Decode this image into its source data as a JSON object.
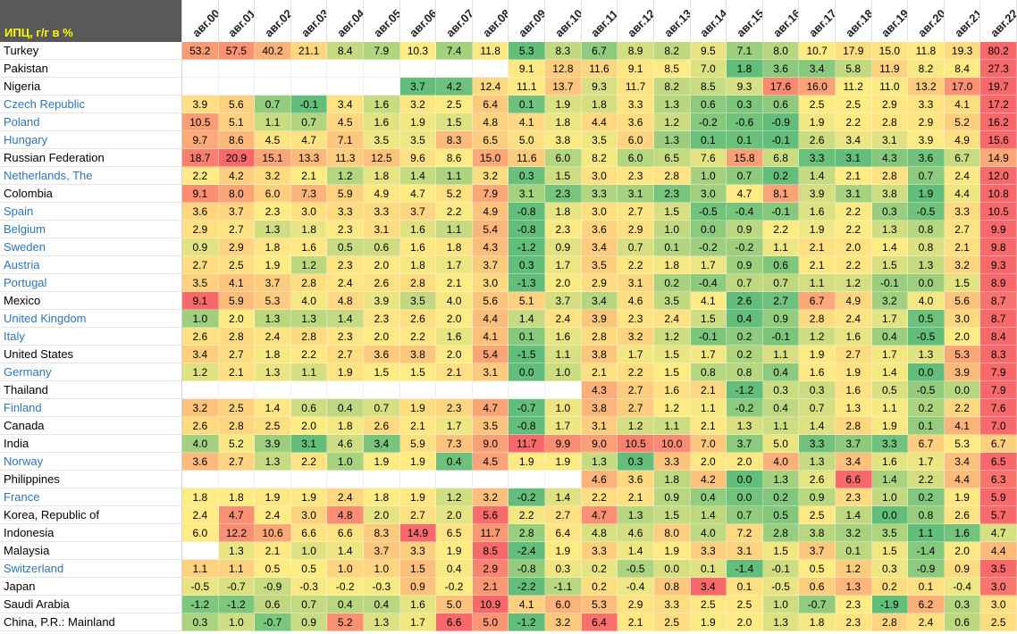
{
  "chart_data": {
    "type": "heatmap",
    "corner_label": "ИПЦ, г/г в %",
    "columns": [
      "авг.00",
      "авг.01",
      "авг.02",
      "авг.03",
      "авг.04",
      "авг.05",
      "авг.06",
      "авг.07",
      "авг.08",
      "авг.09",
      "авг.10",
      "авг.11",
      "авг.12",
      "авг.13",
      "авг.14",
      "авг.15",
      "авг.16",
      "авг.17",
      "авг.18",
      "авг.19",
      "авг.20",
      "авг.21",
      "авг.22"
    ],
    "colors": {
      "low": "#63be7b",
      "mid": "#ffeb84",
      "high": "#f8696b",
      "link": "#2f75b5",
      "header_bg": "#595959",
      "header_text": "#ffff00"
    },
    "rows": [
      {
        "label": "Turkey",
        "link": false,
        "values": [
          "53.2",
          "57.5",
          "40.2",
          "21.1",
          "8.4",
          "7.9",
          "10.3",
          "7.4",
          "11.8",
          "5.3",
          "8.3",
          "6.7",
          "8.9",
          "8.2",
          "9.5",
          "7.1",
          "8.0",
          "10.7",
          "17.9",
          "15.0",
          "11.8",
          "19.3",
          "80.2"
        ]
      },
      {
        "label": "Pakistan",
        "link": false,
        "values": [
          "",
          "",
          "",
          "",
          "",
          "",
          "",
          "",
          "",
          "9.1",
          "12.8",
          "11.6",
          "9.1",
          "8.5",
          "7.0",
          "1.8",
          "3.6",
          "3.4",
          "5.8",
          "11.9",
          "8.2",
          "8.4",
          "27.3"
        ]
      },
      {
        "label": "Nigeria",
        "link": false,
        "values": [
          "",
          "",
          "",
          "",
          "",
          "",
          "3.7",
          "4.2",
          "12.4",
          "11.1",
          "13.7",
          "9.3",
          "11.7",
          "8.2",
          "8.5",
          "9.3",
          "17.6",
          "16.0",
          "11.2",
          "11.0",
          "13.2",
          "17.0",
          "19.7"
        ]
      },
      {
        "label": "Czech Republic",
        "link": true,
        "values": [
          "3.9",
          "5.6",
          "0.7",
          "-0.1",
          "3.4",
          "1.6",
          "3.2",
          "2.5",
          "6.4",
          "0.1",
          "1.9",
          "1.8",
          "3.3",
          "1.3",
          "0.6",
          "0.3",
          "0.6",
          "2.5",
          "2.5",
          "2.9",
          "3.3",
          "4.1",
          "17.2"
        ]
      },
      {
        "label": "Poland",
        "link": true,
        "values": [
          "10.5",
          "5.1",
          "1.1",
          "0.7",
          "4.5",
          "1.6",
          "1.9",
          "1.5",
          "4.8",
          "4.1",
          "1.8",
          "4.4",
          "3.6",
          "1.2",
          "-0.2",
          "-0.6",
          "-0.9",
          "1.9",
          "2.2",
          "2.8",
          "2.9",
          "5.2",
          "16.2"
        ]
      },
      {
        "label": "Hungary",
        "link": true,
        "values": [
          "9.7",
          "8.6",
          "4.5",
          "4.7",
          "7.1",
          "3.5",
          "3.5",
          "8.3",
          "6.5",
          "5.0",
          "3.8",
          "3.5",
          "6.0",
          "1.3",
          "0.1",
          "0.1",
          "-0.1",
          "2.6",
          "3.4",
          "3.1",
          "3.9",
          "4.9",
          "15.6"
        ]
      },
      {
        "label": "Russian Federation",
        "link": false,
        "values": [
          "18.7",
          "20.9",
          "15.1",
          "13.3",
          "11.3",
          "12.5",
          "9.6",
          "8.6",
          "15.0",
          "11.6",
          "6.0",
          "8.2",
          "6.0",
          "6.5",
          "7.6",
          "15.8",
          "6.8",
          "3.3",
          "3.1",
          "4.3",
          "3.6",
          "6.7",
          "14.9"
        ]
      },
      {
        "label": "Netherlands, The",
        "link": true,
        "values": [
          "2.2",
          "4.2",
          "3.2",
          "2.1",
          "1.2",
          "1.8",
          "1.4",
          "1.1",
          "3.2",
          "0.3",
          "1.5",
          "3.0",
          "2.3",
          "2.8",
          "1.0",
          "0.7",
          "0.2",
          "1.4",
          "2.1",
          "2.8",
          "0.7",
          "2.4",
          "12.0"
        ]
      },
      {
        "label": "Colombia",
        "link": false,
        "values": [
          "9.1",
          "8.0",
          "6.0",
          "7.3",
          "5.9",
          "4.9",
          "4.7",
          "5.2",
          "7.9",
          "3.1",
          "2.3",
          "3.3",
          "3.1",
          "2.3",
          "3.0",
          "4.7",
          "8.1",
          "3.9",
          "3.1",
          "3.8",
          "1.9",
          "4.4",
          "10.8"
        ]
      },
      {
        "label": "Spain",
        "link": true,
        "values": [
          "3.6",
          "3.7",
          "2.3",
          "3.0",
          "3.3",
          "3.3",
          "3.7",
          "2.2",
          "4.9",
          "-0.8",
          "1.8",
          "3.0",
          "2.7",
          "1.5",
          "-0.5",
          "-0.4",
          "-0.1",
          "1.6",
          "2.2",
          "0.3",
          "-0.5",
          "3.3",
          "10.5"
        ]
      },
      {
        "label": "Belgium",
        "link": true,
        "values": [
          "2.9",
          "2.7",
          "1.3",
          "1.8",
          "2.3",
          "3.1",
          "1.6",
          "1.1",
          "5.4",
          "-0.8",
          "2.3",
          "3.6",
          "2.9",
          "1.0",
          "0.0",
          "0.9",
          "2.2",
          "1.9",
          "2.2",
          "1.3",
          "0.8",
          "2.7",
          "9.9"
        ]
      },
      {
        "label": "Sweden",
        "link": true,
        "values": [
          "0.9",
          "2.9",
          "1.8",
          "1.6",
          "0.5",
          "0.6",
          "1.6",
          "1.8",
          "4.3",
          "-1.2",
          "0.9",
          "3.4",
          "0.7",
          "0.1",
          "-0.2",
          "-0.2",
          "1.1",
          "2.1",
          "2.0",
          "1.4",
          "0.8",
          "2.1",
          "9.8"
        ]
      },
      {
        "label": "Austria",
        "link": true,
        "values": [
          "2.7",
          "2.5",
          "1.9",
          "1.2",
          "2.3",
          "2.0",
          "1.8",
          "1.7",
          "3.7",
          "0.3",
          "1.7",
          "3.5",
          "2.2",
          "1.8",
          "1.7",
          "0.9",
          "0.6",
          "2.1",
          "2.2",
          "1.5",
          "1.3",
          "3.2",
          "9.3"
        ]
      },
      {
        "label": "Portugal",
        "link": true,
        "values": [
          "3.5",
          "4.1",
          "3.7",
          "2.8",
          "2.4",
          "2.6",
          "2.8",
          "2.1",
          "3.0",
          "-1.3",
          "2.0",
          "2.9",
          "3.1",
          "0.2",
          "-0.4",
          "0.7",
          "0.7",
          "1.1",
          "1.2",
          "-0.1",
          "0.0",
          "1.5",
          "8.9"
        ]
      },
      {
        "label": "Mexico",
        "link": false,
        "values": [
          "9.1",
          "5.9",
          "5.3",
          "4.0",
          "4.8",
          "3.9",
          "3.5",
          "4.0",
          "5.6",
          "5.1",
          "3.7",
          "3.4",
          "4.6",
          "3.5",
          "4.1",
          "2.6",
          "2.7",
          "6.7",
          "4.9",
          "3.2",
          "4.0",
          "5.6",
          "8.7"
        ]
      },
      {
        "label": "United Kingdom",
        "link": true,
        "values": [
          "1.0",
          "2.0",
          "1.3",
          "1.3",
          "1.4",
          "2.3",
          "2.6",
          "2.0",
          "4.4",
          "1.4",
          "2.4",
          "3.9",
          "2.3",
          "2.4",
          "1.5",
          "0.4",
          "0.9",
          "2.8",
          "2.4",
          "1.7",
          "0.5",
          "3.0",
          "8.7"
        ]
      },
      {
        "label": "Italy",
        "link": true,
        "values": [
          "2.6",
          "2.8",
          "2.4",
          "2.8",
          "2.3",
          "2.0",
          "2.2",
          "1.6",
          "4.1",
          "0.1",
          "1.6",
          "2.8",
          "3.2",
          "1.2",
          "-0.1",
          "0.2",
          "-0.1",
          "1.2",
          "1.6",
          "0.4",
          "-0.5",
          "2.0",
          "8.4"
        ]
      },
      {
        "label": "United States",
        "link": false,
        "values": [
          "3.4",
          "2.7",
          "1.8",
          "2.2",
          "2.7",
          "3.6",
          "3.8",
          "2.0",
          "5.4",
          "-1.5",
          "1.1",
          "3.8",
          "1.7",
          "1.5",
          "1.7",
          "0.2",
          "1.1",
          "1.9",
          "2.7",
          "1.7",
          "1.3",
          "5.3",
          "8.3"
        ]
      },
      {
        "label": "Germany",
        "link": true,
        "values": [
          "1.2",
          "2.1",
          "1.3",
          "1.1",
          "1.9",
          "1.5",
          "1.5",
          "2.1",
          "3.1",
          "0.0",
          "1.0",
          "2.1",
          "2.2",
          "1.5",
          "0.8",
          "0.8",
          "0.4",
          "1.6",
          "1.9",
          "1.4",
          "0.0",
          "3.9",
          "7.9"
        ]
      },
      {
        "label": "Thailand",
        "link": false,
        "values": [
          "",
          "",
          "",
          "",
          "",
          "",
          "",
          "",
          "",
          "",
          "",
          "4.3",
          "2.7",
          "1.6",
          "2.1",
          "-1.2",
          "0.3",
          "0.3",
          "1.6",
          "0.5",
          "-0.5",
          "0.0",
          "7.9"
        ]
      },
      {
        "label": "Finland",
        "link": true,
        "values": [
          "3.2",
          "2.5",
          "1.4",
          "0.6",
          "0.4",
          "0.7",
          "1.9",
          "2.3",
          "4.7",
          "-0.7",
          "1.0",
          "3.8",
          "2.7",
          "1.2",
          "1.1",
          "-0.2",
          "0.4",
          "0.7",
          "1.3",
          "1.1",
          "0.2",
          "2.2",
          "7.6"
        ]
      },
      {
        "label": "Canada",
        "link": false,
        "values": [
          "2.6",
          "2.8",
          "2.5",
          "2.0",
          "1.8",
          "2.6",
          "2.1",
          "1.7",
          "3.5",
          "-0.8",
          "1.7",
          "3.1",
          "1.2",
          "1.1",
          "2.1",
          "1.3",
          "1.1",
          "1.4",
          "2.8",
          "1.9",
          "0.1",
          "4.1",
          "7.0"
        ]
      },
      {
        "label": "India",
        "link": false,
        "values": [
          "4.0",
          "5.2",
          "3.9",
          "3.1",
          "4.6",
          "3.4",
          "5.9",
          "7.3",
          "9.0",
          "11.7",
          "9.9",
          "9.0",
          "10.5",
          "10.0",
          "7.0",
          "3.7",
          "5.0",
          "3.3",
          "3.7",
          "3.3",
          "6.7",
          "5.3",
          "6.7"
        ]
      },
      {
        "label": "Norway",
        "link": true,
        "values": [
          "3.6",
          "2.7",
          "1.3",
          "2.2",
          "1.0",
          "1.9",
          "1.9",
          "0.4",
          "4.5",
          "1.9",
          "1.9",
          "1.3",
          "0.3",
          "3.3",
          "2.0",
          "2.0",
          "4.0",
          "1.3",
          "3.4",
          "1.6",
          "1.7",
          "3.4",
          "6.5"
        ]
      },
      {
        "label": "Philippines",
        "link": false,
        "values": [
          "",
          "",
          "",
          "",
          "",
          "",
          "",
          "",
          "",
          "",
          "",
          "4.6",
          "3.6",
          "1.8",
          "4.2",
          "0.0",
          "1.3",
          "2.6",
          "6.6",
          "1.4",
          "2.2",
          "4.4",
          "6.3"
        ]
      },
      {
        "label": "France",
        "link": true,
        "values": [
          "1.8",
          "1.8",
          "1.9",
          "1.9",
          "2.4",
          "1.8",
          "1.9",
          "1.2",
          "3.2",
          "-0.2",
          "1.4",
          "2.2",
          "2.1",
          "0.9",
          "0.4",
          "0.0",
          "0.2",
          "0.9",
          "2.3",
          "1.0",
          "0.2",
          "1.9",
          "5.9"
        ]
      },
      {
        "label": "Korea, Republic of",
        "link": false,
        "values": [
          "2.4",
          "4.7",
          "2.4",
          "3.0",
          "4.8",
          "2.0",
          "2.7",
          "2.0",
          "5.6",
          "2.2",
          "2.7",
          "4.7",
          "1.3",
          "1.5",
          "1.4",
          "0.7",
          "0.5",
          "2.5",
          "1.4",
          "0.0",
          "0.8",
          "2.6",
          "5.7"
        ]
      },
      {
        "label": "Indonesia",
        "link": false,
        "values": [
          "6.0",
          "12.2",
          "10.6",
          "6.6",
          "6.6",
          "8.3",
          "14.9",
          "6.5",
          "11.7",
          "2.8",
          "6.4",
          "4.8",
          "4.6",
          "8.0",
          "4.0",
          "7.2",
          "2.8",
          "3.8",
          "3.2",
          "3.5",
          "1.1",
          "1.6",
          "4.7"
        ]
      },
      {
        "label": "Malaysia",
        "link": false,
        "values": [
          "",
          "1.3",
          "2.1",
          "1.0",
          "1.4",
          "3.7",
          "3.3",
          "1.9",
          "8.5",
          "-2.4",
          "1.9",
          "3.3",
          "1.4",
          "1.9",
          "3.3",
          "3.1",
          "1.5",
          "3.7",
          "0.1",
          "1.5",
          "-1.4",
          "2.0",
          "4.4"
        ]
      },
      {
        "label": "Switzerland",
        "link": true,
        "values": [
          "1.1",
          "1.1",
          "0.5",
          "0.5",
          "1.0",
          "1.0",
          "1.5",
          "0.4",
          "2.9",
          "-0.8",
          "0.3",
          "0.2",
          "-0.5",
          "0.0",
          "0.1",
          "-1.4",
          "-0.1",
          "0.5",
          "1.2",
          "0.3",
          "-0.9",
          "0.9",
          "3.5"
        ]
      },
      {
        "label": "Japan",
        "link": false,
        "values": [
          "-0.5",
          "-0.7",
          "-0.9",
          "-0.3",
          "-0.2",
          "-0.3",
          "0.9",
          "-0.2",
          "2.1",
          "-2.2",
          "-1.1",
          "0.2",
          "-0.4",
          "0.8",
          "3.4",
          "0.1",
          "-0.5",
          "0.6",
          "1.3",
          "0.2",
          "0.1",
          "-0.4",
          "3.0"
        ]
      },
      {
        "label": "Saudi Arabia",
        "link": false,
        "values": [
          "-1.2",
          "-1.2",
          "0.6",
          "0.7",
          "0.4",
          "0.4",
          "1.6",
          "5.0",
          "10.9",
          "4.1",
          "6.0",
          "5.3",
          "2.9",
          "3.3",
          "2.5",
          "2.5",
          "1.0",
          "-0.7",
          "2.3",
          "-1.9",
          "6.2",
          "0.3",
          "3.0"
        ]
      },
      {
        "label": "China, P.R.: Mainland",
        "link": false,
        "values": [
          "0.3",
          "1.0",
          "-0.7",
          "0.9",
          "5.2",
          "1.3",
          "1.7",
          "6.6",
          "5.0",
          "-1.2",
          "3.2",
          "6.4",
          "2.1",
          "2.5",
          "1.9",
          "2.0",
          "1.3",
          "1.8",
          "2.3",
          "2.8",
          "2.4",
          "0.6",
          "2.5"
        ]
      }
    ]
  }
}
